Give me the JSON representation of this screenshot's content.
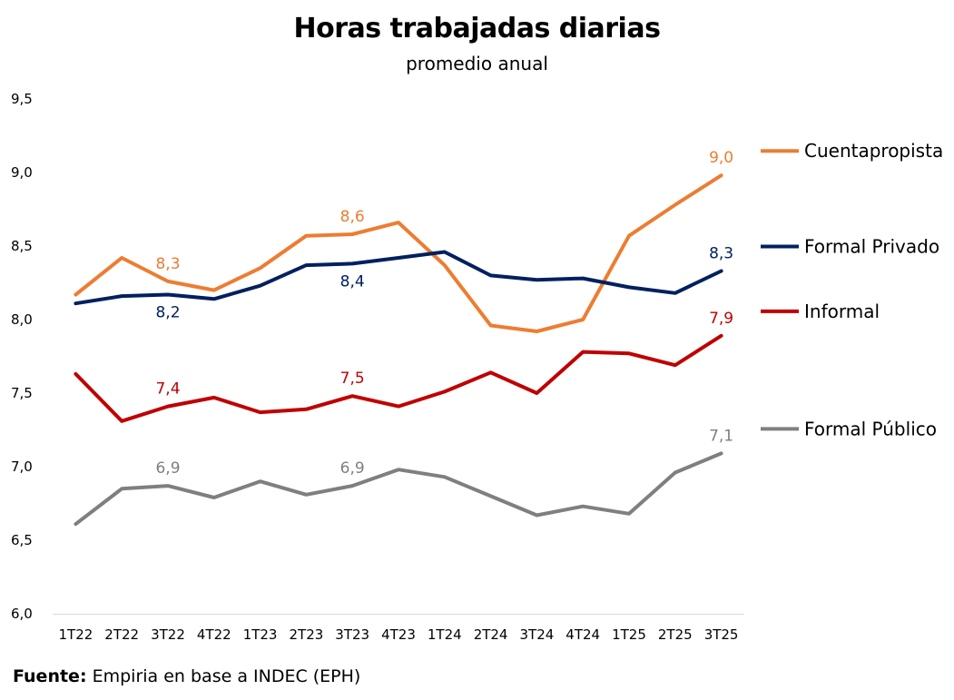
{
  "chart_data": {
    "type": "line",
    "title": "Horas trabajadas diarias",
    "subtitle": "promedio anual",
    "xlabel": "",
    "ylabel": "",
    "ylim": [
      6.0,
      9.5
    ],
    "ytick_step": 0.5,
    "yticks": [
      "6,0",
      "6,5",
      "7,0",
      "7,5",
      "8,0",
      "8,5",
      "9,0",
      "9,5"
    ],
    "grid": false,
    "legend_position": "right",
    "categories": [
      "1T22",
      "2T22",
      "3T22",
      "4T22",
      "1T23",
      "2T23",
      "3T23",
      "4T23",
      "1T24",
      "2T24",
      "3T24",
      "4T24",
      "1T25",
      "2T25",
      "3T25"
    ],
    "series": [
      {
        "name": "Cuentapropista",
        "color": "#ED7D31",
        "values": [
          8.17,
          8.42,
          8.26,
          8.2,
          8.35,
          8.57,
          8.58,
          8.66,
          8.37,
          7.96,
          7.92,
          8.0,
          8.57,
          8.78,
          8.98
        ],
        "labels": [
          {
            "index": 2,
            "text": "8,3",
            "position": "above"
          },
          {
            "index": 6,
            "text": "8,6",
            "position": "above"
          },
          {
            "index": 14,
            "text": "9,0",
            "position": "above"
          }
        ]
      },
      {
        "name": "Formal Privado",
        "color": "#002060",
        "values": [
          8.11,
          8.16,
          8.17,
          8.14,
          8.23,
          8.37,
          8.38,
          8.42,
          8.46,
          8.3,
          8.27,
          8.28,
          8.22,
          8.18,
          8.33
        ],
        "labels": [
          {
            "index": 2,
            "text": "8,2",
            "position": "below"
          },
          {
            "index": 6,
            "text": "8,4",
            "position": "below"
          },
          {
            "index": 14,
            "text": "8,3",
            "position": "above"
          }
        ]
      },
      {
        "name": "Informal",
        "color": "#C00000",
        "values": [
          7.63,
          7.31,
          7.41,
          7.47,
          7.37,
          7.39,
          7.48,
          7.41,
          7.51,
          7.64,
          7.5,
          7.78,
          7.77,
          7.69,
          7.89
        ],
        "labels": [
          {
            "index": 2,
            "text": "7,4",
            "position": "above"
          },
          {
            "index": 6,
            "text": "7,5",
            "position": "above"
          },
          {
            "index": 14,
            "text": "7,9",
            "position": "above"
          }
        ]
      },
      {
        "name": "Formal Público",
        "color": "#7F7F7F",
        "values": [
          6.61,
          6.85,
          6.87,
          6.79,
          6.9,
          6.81,
          6.87,
          6.98,
          6.93,
          6.8,
          6.67,
          6.73,
          6.68,
          6.96,
          7.09
        ],
        "labels": [
          {
            "index": 2,
            "text": "6,9",
            "position": "above"
          },
          {
            "index": 6,
            "text": "6,9",
            "position": "above"
          },
          {
            "index": 14,
            "text": "7,1",
            "position": "above"
          }
        ]
      }
    ]
  },
  "footer": {
    "source_label": "Fuente:",
    "source_text": "Empiria en base a INDEC (EPH)"
  }
}
